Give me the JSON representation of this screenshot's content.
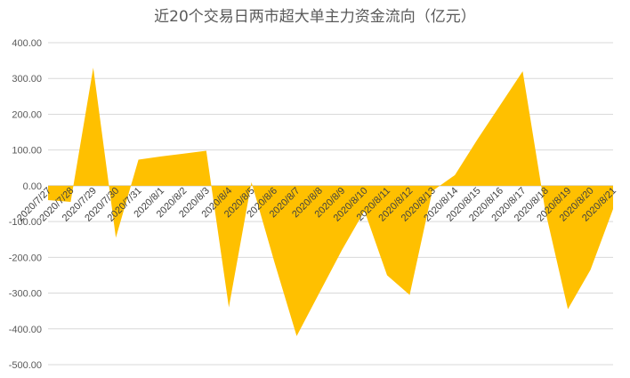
{
  "chart_data": {
    "type": "area",
    "title": "近20个交易日两市超大单主力资金流向（亿元）",
    "xlabel": "",
    "ylabel": "",
    "ylim": [
      -500,
      400
    ],
    "y_ticks": [
      "400.00",
      "300.00",
      "200.00",
      "100.00",
      "0.00",
      "-100.00",
      "-200.00",
      "-300.00",
      "-400.00",
      "-500.00"
    ],
    "grid": true,
    "legend": "none",
    "color": "#FFC000",
    "categories": [
      "2020/7/27",
      "2020/7/28",
      "2020/7/29",
      "2020/7/30",
      "2020/7/31",
      "2020/8/1",
      "2020/8/2",
      "2020/8/3",
      "2020/8/4",
      "2020/8/5",
      "2020/8/6",
      "2020/8/7",
      "2020/8/8",
      "2020/8/9",
      "2020/8/10",
      "2020/8/11",
      "2020/8/12",
      "2020/8/13",
      "2020/8/14",
      "2020/8/15",
      "2020/8/16",
      "2020/8/17",
      "2020/8/18",
      "2020/8/19",
      "2020/8/20",
      "2020/8/21"
    ],
    "values": [
      -40,
      -45,
      330,
      -145,
      73,
      82,
      90,
      98,
      -340,
      10,
      -210,
      -420,
      -300,
      -180,
      -70,
      -250,
      -305,
      -15,
      30,
      130,
      225,
      320,
      -70,
      -345,
      -235,
      -65
    ]
  }
}
